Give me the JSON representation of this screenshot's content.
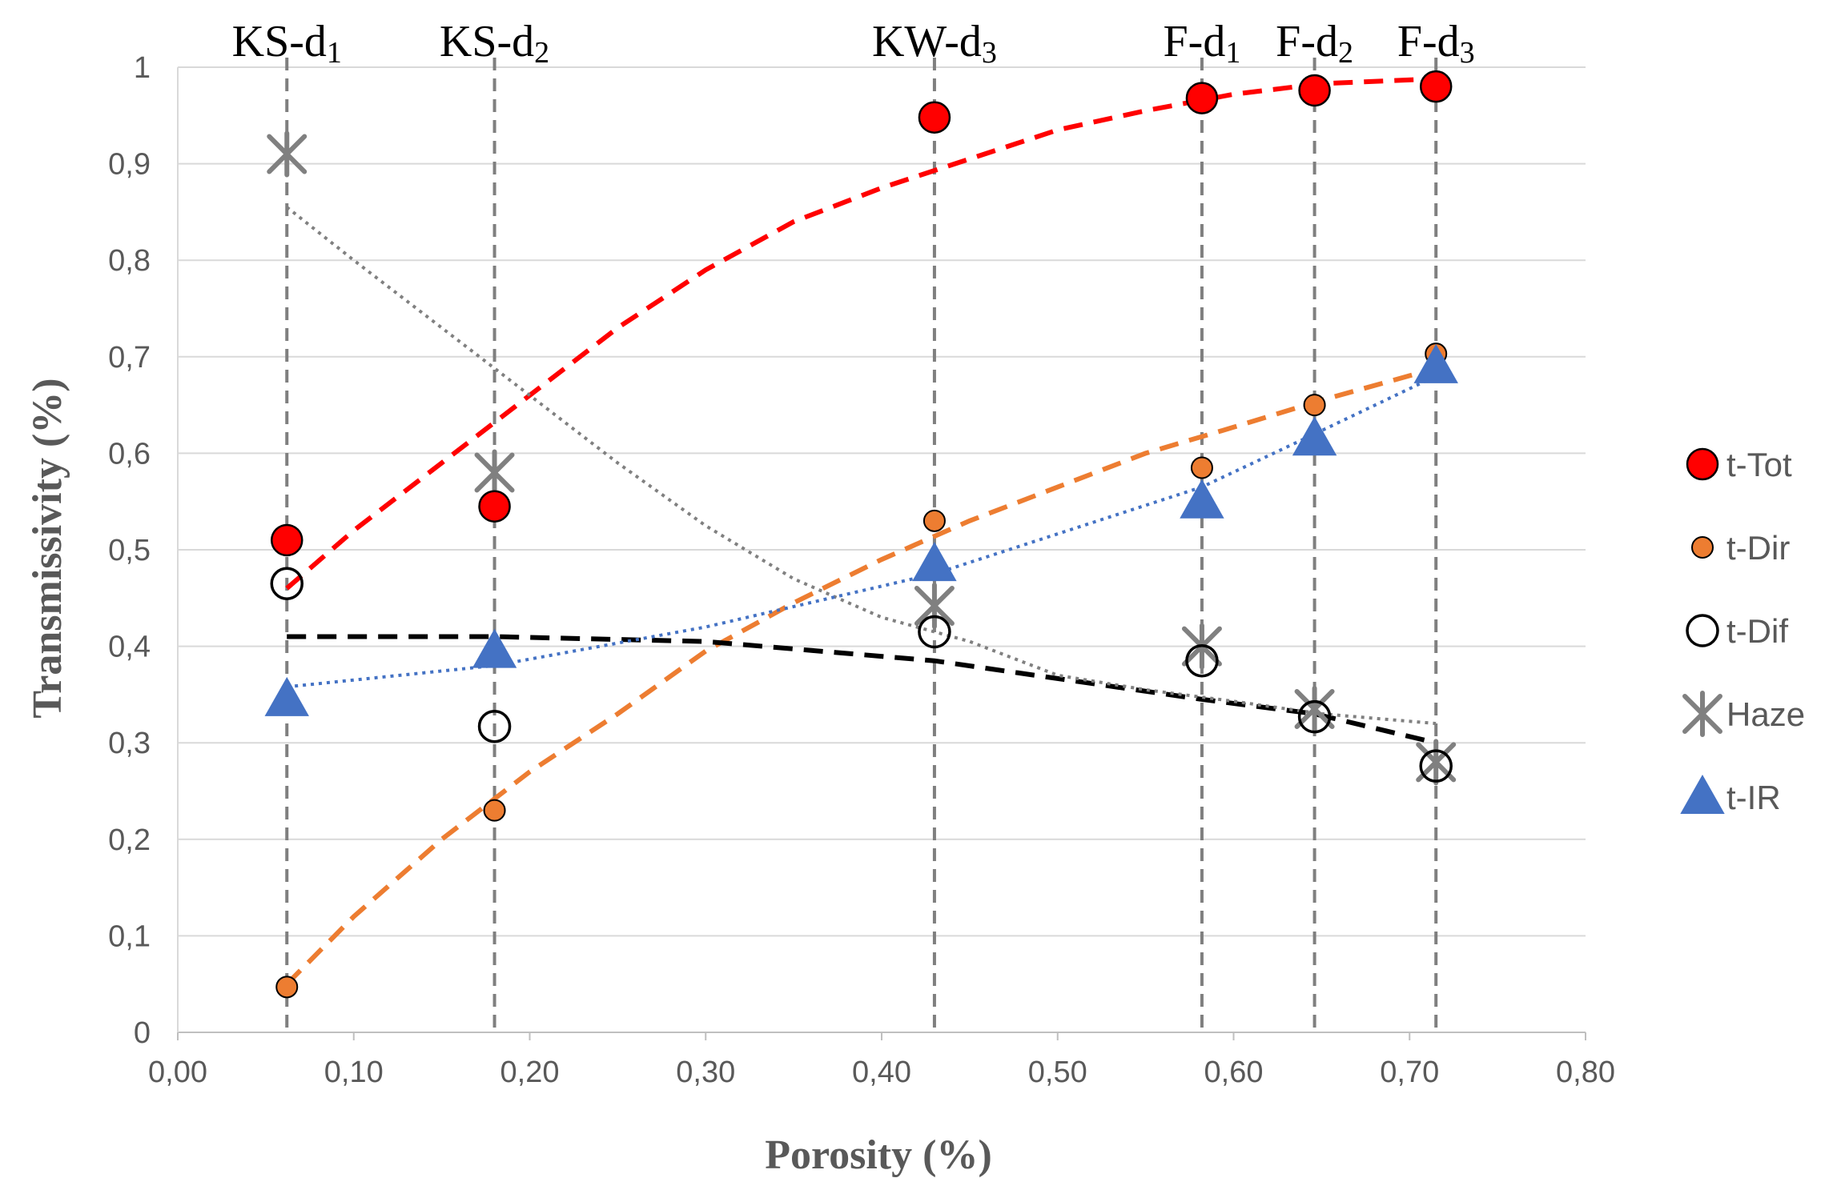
{
  "chart_data": {
    "type": "scatter",
    "title": "",
    "xlabel": "Porosity (%)",
    "ylabel": "Transmissivity (%)",
    "xlim": [
      0,
      0.8
    ],
    "ylim": [
      0,
      1
    ],
    "x_ticks": [
      0,
      0.1,
      0.2,
      0.3,
      0.4,
      0.5,
      0.6,
      0.7,
      0.8
    ],
    "x_tick_labels": [
      "0,00",
      "0,10",
      "0,20",
      "0,30",
      "0,40",
      "0,50",
      "0,60",
      "0,70",
      "0,80"
    ],
    "y_ticks": [
      0,
      0.1,
      0.2,
      0.3,
      0.4,
      0.5,
      0.6,
      0.7,
      0.8,
      0.9,
      1
    ],
    "y_tick_labels": [
      "0",
      "0,1",
      "0,2",
      "0,3",
      "0,4",
      "0,5",
      "0,6",
      "0,7",
      "0,8",
      "0,9",
      "1"
    ],
    "grid": "horizontal",
    "legend_position": "right",
    "samples": [
      {
        "id": "KS-d1",
        "base": "KS-d",
        "sub": "1",
        "x": 0.062
      },
      {
        "id": "KS-d2",
        "base": "KS-d",
        "sub": "2",
        "x": 0.18
      },
      {
        "id": "KW-d3",
        "base": "KW-d",
        "sub": "3",
        "x": 0.43
      },
      {
        "id": "F-d1",
        "base": "F-d",
        "sub": "1",
        "x": 0.582
      },
      {
        "id": "F-d2",
        "base": "F-d",
        "sub": "2",
        "x": 0.646
      },
      {
        "id": "F-d3",
        "base": "F-d",
        "sub": "3",
        "x": 0.715
      }
    ],
    "x": [
      0.062,
      0.18,
      0.43,
      0.582,
      0.646,
      0.715
    ],
    "series": [
      {
        "name": "t-Tot",
        "marker": "circle-filled",
        "color": "#ff0000",
        "values": [
          0.51,
          0.545,
          0.948,
          0.968,
          0.976,
          0.98
        ]
      },
      {
        "name": "t-Dir",
        "marker": "circle-small",
        "color": "#ed7d31",
        "values": [
          0.047,
          0.23,
          0.53,
          0.585,
          0.65,
          0.703
        ]
      },
      {
        "name": "t-Dif",
        "marker": "circle-open",
        "color": "#000000",
        "values": [
          0.465,
          0.317,
          0.415,
          0.385,
          0.327,
          0.276
        ]
      },
      {
        "name": "Haze",
        "marker": "star",
        "color": "#808080",
        "values": [
          0.91,
          0.58,
          0.442,
          0.4,
          0.335,
          0.28
        ]
      },
      {
        "name": "t-IR",
        "marker": "triangle",
        "color": "#4472c4",
        "values": [
          0.345,
          0.395,
          0.485,
          0.55,
          0.615,
          0.69
        ]
      }
    ],
    "trendlines": [
      {
        "series": "t-Tot",
        "style": "dashed",
        "color": "#ff0000",
        "x": [
          0.062,
          0.1,
          0.15,
          0.2,
          0.25,
          0.3,
          0.35,
          0.4,
          0.45,
          0.5,
          0.55,
          0.6,
          0.65,
          0.715
        ],
        "y": [
          0.46,
          0.52,
          0.59,
          0.66,
          0.73,
          0.79,
          0.84,
          0.875,
          0.905,
          0.935,
          0.955,
          0.972,
          0.983,
          0.988
        ]
      },
      {
        "series": "t-Dir",
        "style": "dashed",
        "color": "#ed7d31",
        "x": [
          0.062,
          0.1,
          0.15,
          0.2,
          0.25,
          0.3,
          0.35,
          0.4,
          0.45,
          0.5,
          0.55,
          0.6,
          0.65,
          0.715
        ],
        "y": [
          0.05,
          0.12,
          0.2,
          0.27,
          0.33,
          0.395,
          0.445,
          0.49,
          0.53,
          0.565,
          0.6,
          0.627,
          0.655,
          0.688
        ]
      },
      {
        "series": "t-Dif",
        "style": "dashed",
        "color": "#000000",
        "x": [
          0.062,
          0.18,
          0.3,
          0.43,
          0.582,
          0.646,
          0.715
        ],
        "y": [
          0.41,
          0.41,
          0.405,
          0.385,
          0.345,
          0.33,
          0.3
        ]
      },
      {
        "series": "Haze",
        "style": "dotted",
        "color": "#808080",
        "x": [
          0.062,
          0.1,
          0.15,
          0.2,
          0.25,
          0.3,
          0.35,
          0.4,
          0.45,
          0.5,
          0.55,
          0.6,
          0.65,
          0.715
        ],
        "y": [
          0.855,
          0.8,
          0.73,
          0.66,
          0.59,
          0.525,
          0.47,
          0.43,
          0.405,
          0.37,
          0.355,
          0.343,
          0.33,
          0.32
        ]
      },
      {
        "series": "t-IR",
        "style": "dotted",
        "color": "#4472c4",
        "x": [
          0.062,
          0.18,
          0.3,
          0.43,
          0.582,
          0.646,
          0.715
        ],
        "y": [
          0.358,
          0.38,
          0.42,
          0.475,
          0.565,
          0.62,
          0.68
        ]
      }
    ]
  }
}
